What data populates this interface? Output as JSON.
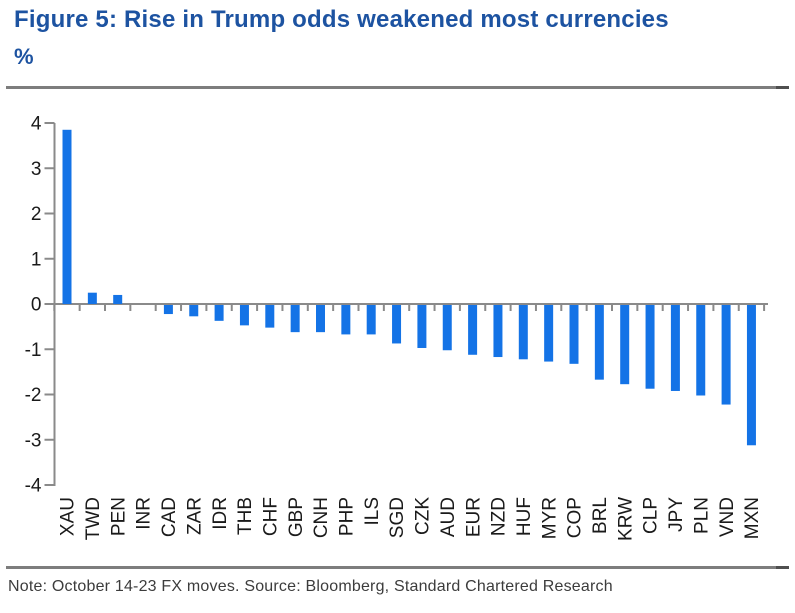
{
  "figure": {
    "title": "Figure 5: Rise in Trump odds weakened most currencies",
    "unit_label": "%"
  },
  "footer": {
    "note": "Note: October 14-23 FX moves. Source: Bloomberg, Standard Chartered Research"
  },
  "chart_data": {
    "type": "bar",
    "title": "Figure 5: Rise in Trump odds weakened most currencies",
    "xlabel": "",
    "ylabel": "%",
    "categories": [
      "XAU",
      "TWD",
      "PEN",
      "INR",
      "CAD",
      "ZAR",
      "IDR",
      "THB",
      "CHF",
      "GBP",
      "CNH",
      "PHP",
      "ILS",
      "SGD",
      "CZK",
      "AUD",
      "EUR",
      "NZD",
      "HUF",
      "MYR",
      "COP",
      "BRL",
      "KRW",
      "CLP",
      "JPY",
      "PLN",
      "VND",
      "MXN"
    ],
    "values": [
      3.85,
      0.25,
      0.2,
      0,
      -0.2,
      -0.25,
      -0.35,
      -0.45,
      -0.5,
      -0.6,
      -0.6,
      -0.65,
      -0.65,
      -0.85,
      -0.95,
      -1.0,
      -1.1,
      -1.15,
      -1.2,
      -1.25,
      -1.3,
      -1.65,
      -1.75,
      -1.85,
      -1.9,
      -2.0,
      -2.2,
      -3.1
    ],
    "ylim": [
      -4,
      4
    ],
    "yticks": [
      4,
      3,
      2,
      1,
      0,
      -1,
      -2,
      -3,
      -4
    ],
    "grid": false,
    "legend": "none",
    "x_tick_rotation": 90
  },
  "colors": {
    "title_blue": "#1D53A1",
    "bar_blue": "#1473E6",
    "axis_gray": "#8A8A8A",
    "tick_label": "#1A1A1A",
    "note_gray": "#3C3C3C",
    "divider_gray": "#7D7D7D",
    "divider_tip": "#4F4F4F"
  }
}
